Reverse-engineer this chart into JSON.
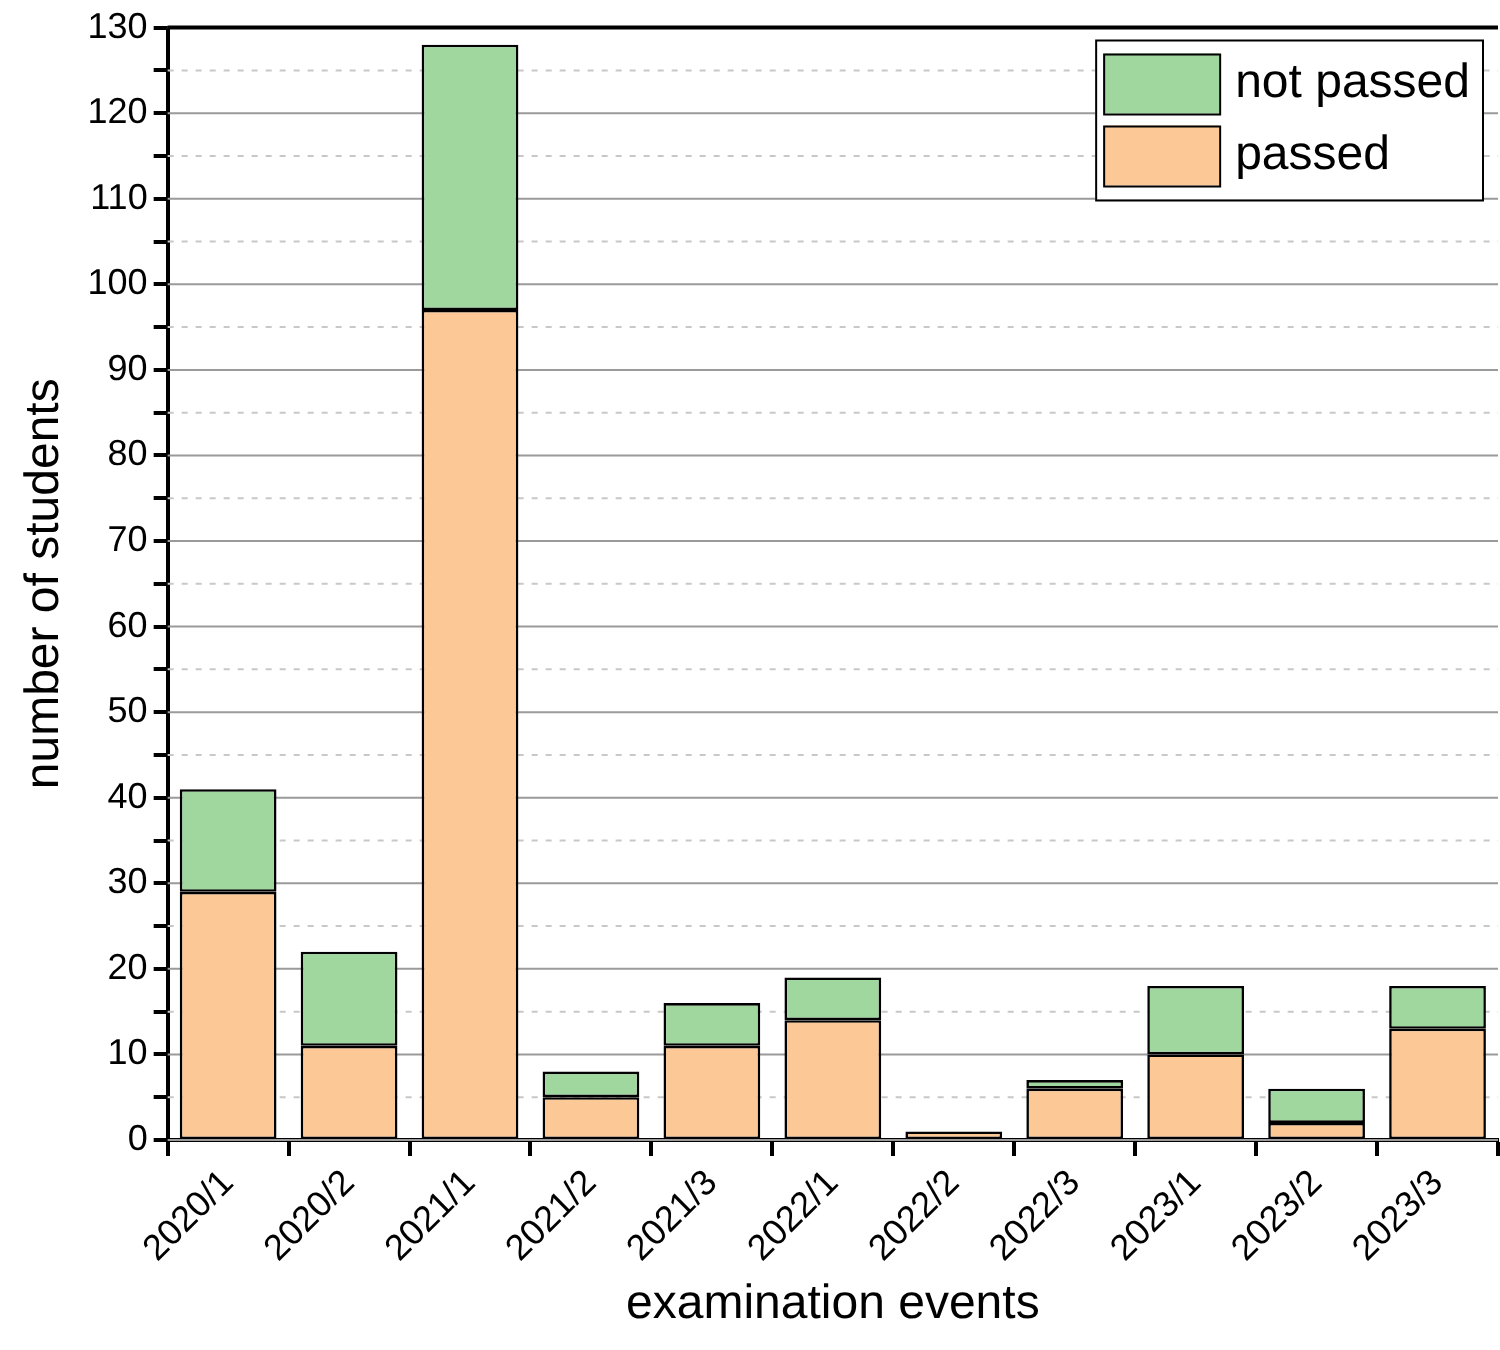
{
  "chart_data": {
    "type": "bar",
    "xlabel": "examination events",
    "ylabel": "number of students",
    "categories": [
      "2020/1",
      "2020/2",
      "2021/1",
      "2021/2",
      "2021/3",
      "2022/1",
      "2022/2",
      "2022/3",
      "2023/1",
      "2023/2",
      "2023/3"
    ],
    "series": [
      {
        "name": "passed",
        "color": "#fbc896",
        "values": [
          29,
          11,
          97,
          5,
          11,
          14,
          1,
          6,
          10,
          2,
          13
        ]
      },
      {
        "name": "not passed",
        "color": "#9fd79f",
        "values": [
          12,
          11,
          31,
          3,
          5,
          5,
          0,
          1,
          8,
          4,
          5
        ]
      }
    ],
    "stacked": true,
    "ylim": [
      0,
      130
    ],
    "yticks": [
      0,
      {
        "value": 5,
        "label": null
      },
      10,
      {
        "value": 15,
        "label": null
      },
      20,
      {
        "value": 25,
        "label": null
      },
      30,
      {
        "value": 35,
        "label": null
      },
      40,
      {
        "value": 45,
        "label": null
      },
      50,
      {
        "value": 55,
        "label": null
      },
      60,
      {
        "value": 65,
        "label": null
      },
      70,
      {
        "value": 75,
        "label": null
      },
      80,
      {
        "value": 85,
        "label": null
      },
      90,
      {
        "value": 95,
        "label": null
      },
      100,
      {
        "value": 105,
        "label": null
      },
      110,
      {
        "value": 115,
        "label": null
      },
      120,
      {
        "value": 125,
        "label": null
      },
      130
    ],
    "grid": "y",
    "legend": "top right"
  }
}
